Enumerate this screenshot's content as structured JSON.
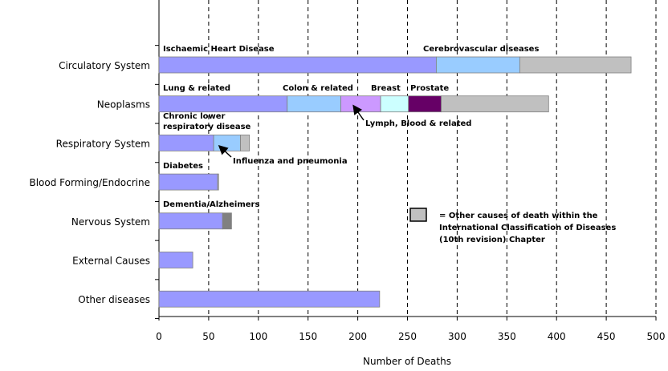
{
  "chart_data": {
    "type": "bar",
    "orientation": "horizontal",
    "stacked": true,
    "xlabel": "Number of Deaths",
    "xlim": [
      0,
      500
    ],
    "xticks": [
      0,
      50,
      100,
      150,
      200,
      250,
      300,
      350,
      400,
      450,
      500
    ],
    "grid": true,
    "categories": [
      "Circulatory System",
      "Neoplasms",
      "Respiratory System",
      "Blood Forming/Endocrine",
      "Nervous System",
      "External Causes",
      "Other diseases"
    ],
    "bars": [
      [
        {
          "label": "Ischaemic Heart Disease",
          "value": 279,
          "color": "#9999ff"
        },
        {
          "label": "Cerebrovascular diseases",
          "value": 84,
          "color": "#99ccff"
        },
        {
          "value": 112,
          "color": "#c0c0c0"
        }
      ],
      [
        {
          "label": "Lung & related",
          "value": 129,
          "color": "#9999ff"
        },
        {
          "label": "Colon & related",
          "value": 54,
          "color": "#99ccff"
        },
        {
          "label": "Lymph, Blood & related",
          "value": 40,
          "color": "#cc99ff"
        },
        {
          "label": "Breast",
          "value": 28,
          "color": "#ccffff"
        },
        {
          "label": "Prostate",
          "value": 33,
          "color": "#660066"
        },
        {
          "value": 108,
          "color": "#c0c0c0"
        }
      ],
      [
        {
          "label": [
            "Chronic lower",
            "respiratory disease"
          ],
          "value": 55,
          "color": "#9999ff"
        },
        {
          "label": "Influenza and pneumonia",
          "value": 27,
          "color": "#99ccff"
        },
        {
          "value": 9,
          "color": "#c0c0c0"
        }
      ],
      [
        {
          "label": "Diabetes",
          "value": 59,
          "color": "#9999ff"
        },
        {
          "value": 1,
          "color": "#c0c0c0"
        }
      ],
      [
        {
          "label": "Dementia/Alzheimers",
          "value": 64,
          "color": "#9999ff"
        },
        {
          "value": 9,
          "color": "#808080"
        }
      ],
      [
        {
          "value": 34,
          "color": "#9999ff"
        }
      ],
      [
        {
          "value": 222,
          "color": "#9999ff"
        }
      ]
    ],
    "legend": {
      "color": "#c0c0c0",
      "lines": [
        "= Other causes of death within the",
        "International Classification of Diseases",
        "(10th revision) Chapter"
      ]
    }
  }
}
